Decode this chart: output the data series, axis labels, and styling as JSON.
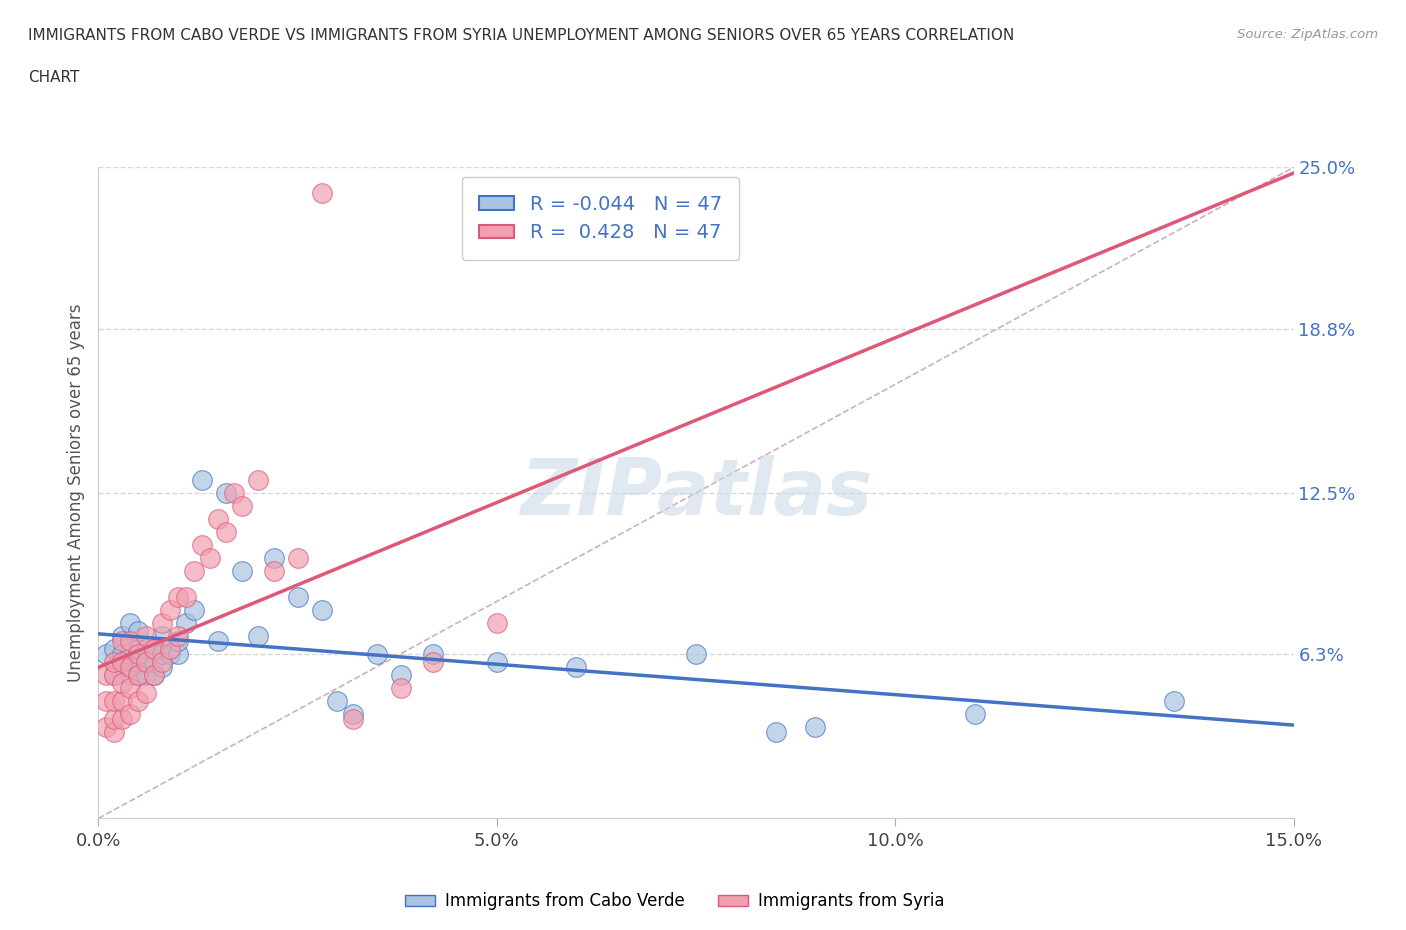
{
  "title_line1": "IMMIGRANTS FROM CABO VERDE VS IMMIGRANTS FROM SYRIA UNEMPLOYMENT AMONG SENIORS OVER 65 YEARS CORRELATION",
  "title_line2": "CHART",
  "source": "Source: ZipAtlas.com",
  "ylabel": "Unemployment Among Seniors over 65 years",
  "x_min": 0.0,
  "x_max": 0.15,
  "y_min": 0.0,
  "y_max": 0.25,
  "y_ticks": [
    0.063,
    0.125,
    0.188,
    0.25
  ],
  "y_tick_labels": [
    "6.3%",
    "12.5%",
    "18.8%",
    "25.0%"
  ],
  "x_ticks": [
    0.0,
    0.05,
    0.1,
    0.15
  ],
  "x_tick_labels": [
    "0.0%",
    "5.0%",
    "10.0%",
    "15.0%"
  ],
  "cabo_verde_R": -0.044,
  "syria_R": 0.428,
  "N": 47,
  "cabo_verde_color": "#a8c4e0",
  "syria_color": "#f0a0b0",
  "cabo_verde_line_color": "#4472c4",
  "syria_line_color": "#e05878",
  "ref_line_color": "#d0b0b8",
  "background_color": "#ffffff",
  "grid_color": "#d8d8d8",
  "watermark": "ZIPatlas",
  "cabo_verde_x": [
    0.001,
    0.002,
    0.002,
    0.003,
    0.003,
    0.003,
    0.004,
    0.004,
    0.004,
    0.005,
    0.005,
    0.005,
    0.005,
    0.006,
    0.006,
    0.006,
    0.007,
    0.007,
    0.007,
    0.008,
    0.008,
    0.008,
    0.009,
    0.01,
    0.01,
    0.011,
    0.012,
    0.013,
    0.015,
    0.016,
    0.018,
    0.02,
    0.022,
    0.025,
    0.028,
    0.03,
    0.032,
    0.035,
    0.038,
    0.042,
    0.05,
    0.06,
    0.075,
    0.085,
    0.09,
    0.11,
    0.135
  ],
  "cabo_verde_y": [
    0.063,
    0.065,
    0.055,
    0.06,
    0.063,
    0.07,
    0.055,
    0.063,
    0.075,
    0.055,
    0.06,
    0.065,
    0.072,
    0.055,
    0.06,
    0.065,
    0.055,
    0.06,
    0.065,
    0.058,
    0.063,
    0.07,
    0.063,
    0.063,
    0.068,
    0.075,
    0.08,
    0.13,
    0.068,
    0.125,
    0.095,
    0.07,
    0.1,
    0.085,
    0.08,
    0.045,
    0.04,
    0.063,
    0.055,
    0.063,
    0.06,
    0.058,
    0.063,
    0.033,
    0.035,
    0.04,
    0.045
  ],
  "syria_x": [
    0.001,
    0.001,
    0.001,
    0.002,
    0.002,
    0.002,
    0.002,
    0.002,
    0.003,
    0.003,
    0.003,
    0.003,
    0.003,
    0.004,
    0.004,
    0.004,
    0.004,
    0.005,
    0.005,
    0.005,
    0.006,
    0.006,
    0.006,
    0.007,
    0.007,
    0.008,
    0.008,
    0.009,
    0.009,
    0.01,
    0.01,
    0.011,
    0.012,
    0.013,
    0.014,
    0.015,
    0.016,
    0.017,
    0.018,
    0.02,
    0.022,
    0.025,
    0.028,
    0.032,
    0.038,
    0.042,
    0.05
  ],
  "syria_y": [
    0.035,
    0.045,
    0.055,
    0.033,
    0.038,
    0.045,
    0.055,
    0.06,
    0.038,
    0.045,
    0.052,
    0.06,
    0.068,
    0.04,
    0.05,
    0.058,
    0.068,
    0.045,
    0.055,
    0.063,
    0.048,
    0.06,
    0.07,
    0.055,
    0.065,
    0.06,
    0.075,
    0.065,
    0.08,
    0.07,
    0.085,
    0.085,
    0.095,
    0.105,
    0.1,
    0.115,
    0.11,
    0.125,
    0.12,
    0.13,
    0.095,
    0.1,
    0.24,
    0.038,
    0.05,
    0.06,
    0.075
  ]
}
